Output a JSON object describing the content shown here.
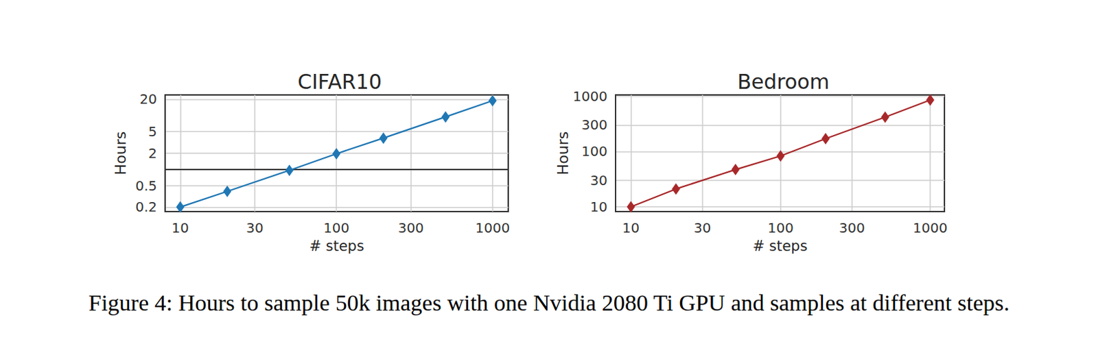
{
  "chart_data": [
    {
      "type": "line",
      "title": "CIFAR10",
      "x_label": "# steps",
      "y_label": "Hours",
      "x": [
        10,
        20,
        50,
        100,
        200,
        500,
        1000
      ],
      "values": [
        0.2,
        0.39,
        0.96,
        1.95,
        3.8,
        9.4,
        18.8
      ],
      "color": "#1f77b4",
      "marker": "diamond",
      "log": true,
      "grid": true,
      "xlim": [
        8,
        1260
      ],
      "ylim": [
        0.165,
        24
      ],
      "xticks": [
        10,
        30,
        100,
        300,
        1000
      ],
      "yticks": [
        0.2,
        0.5,
        2,
        5,
        20
      ]
    },
    {
      "type": "line",
      "title": "Bedroom",
      "x_label": "# steps",
      "y_label": "Hours",
      "x": [
        10,
        20,
        50,
        100,
        200,
        500,
        1000
      ],
      "values": [
        10,
        21,
        47,
        83,
        170,
        417,
        850
      ],
      "color": "#a8282a",
      "marker": "diamond",
      "log": true,
      "grid": true,
      "xlim": [
        7.9,
        1245
      ],
      "ylim": [
        8.2,
        1050
      ],
      "xticks": [
        10,
        30,
        100,
        300,
        1000
      ],
      "yticks": [
        10,
        30,
        100,
        300,
        1000
      ]
    }
  ],
  "caption": "Figure 4: Hours to sample 50k images with one Nvidia 2080 Ti GPU and samples at different steps."
}
